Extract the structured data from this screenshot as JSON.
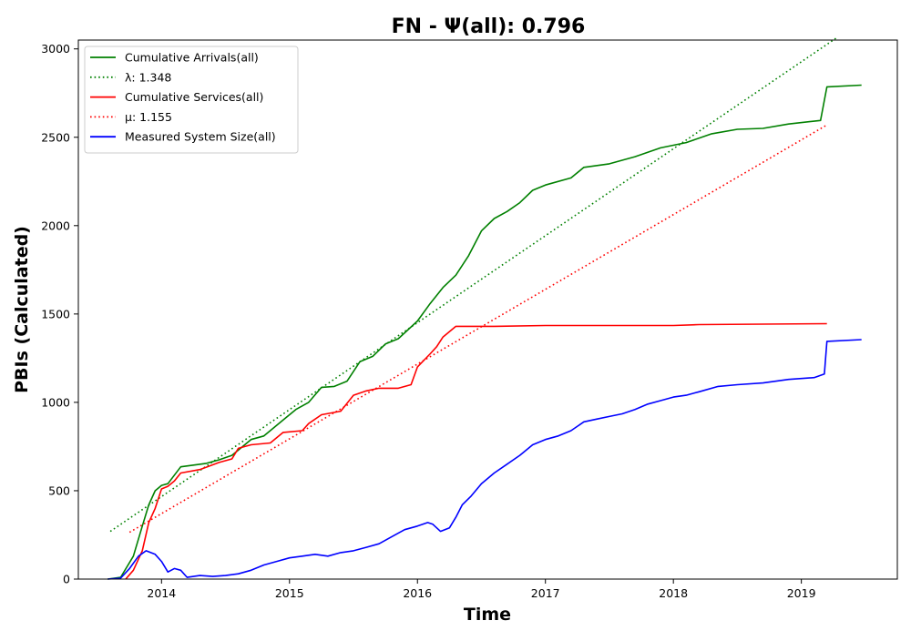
{
  "chart_data": {
    "type": "line",
    "title": "FN -  Ψ(all): 0.796",
    "xlabel": "Time",
    "ylabel": "PBIs (Calculated)",
    "xlim": [
      2013.35,
      2019.75
    ],
    "ylim": [
      0,
      3050
    ],
    "xticks": [
      2014,
      2015,
      2016,
      2017,
      2018,
      2019
    ],
    "yticks": [
      0,
      500,
      1000,
      1500,
      2000,
      2500,
      3000
    ],
    "legend_position": "upper-left",
    "grid": false,
    "series": [
      {
        "name": "Cumulative Arrivals(all)",
        "color": "#008000",
        "style": "solid",
        "x": [
          2013.58,
          2013.68,
          2013.78,
          2013.85,
          2013.9,
          2013.95,
          2014.0,
          2014.05,
          2014.15,
          2014.35,
          2014.45,
          2014.55,
          2014.7,
          2014.8,
          2014.95,
          2015.05,
          2015.15,
          2015.25,
          2015.35,
          2015.45,
          2015.55,
          2015.65,
          2015.75,
          2015.85,
          2016.0,
          2016.1,
          2016.2,
          2016.3,
          2016.4,
          2016.5,
          2016.6,
          2016.7,
          2016.8,
          2016.9,
          2017.0,
          2017.2,
          2017.3,
          2017.5,
          2017.7,
          2017.9,
          2018.1,
          2018.3,
          2018.5,
          2018.7,
          2018.9,
          2019.15,
          2019.2,
          2019.47
        ],
        "y": [
          0,
          10,
          130,
          300,
          420,
          500,
          530,
          540,
          635,
          655,
          675,
          700,
          790,
          810,
          900,
          960,
          1000,
          1085,
          1090,
          1120,
          1230,
          1260,
          1330,
          1360,
          1460,
          1560,
          1650,
          1720,
          1830,
          1970,
          2040,
          2080,
          2130,
          2200,
          2230,
          2270,
          2330,
          2350,
          2390,
          2440,
          2470,
          2520,
          2545,
          2550,
          2575,
          2595,
          2785,
          2795
        ]
      },
      {
        "name": "λ: 1.348",
        "color": "#008000",
        "style": "dotted",
        "x": [
          2013.6,
          2019.28
        ],
        "y": [
          270,
          3065
        ]
      },
      {
        "name": "Cumulative Services(all)",
        "color": "#ff0000",
        "style": "solid",
        "x": [
          2013.72,
          2013.78,
          2013.85,
          2013.9,
          2013.95,
          2014.0,
          2014.05,
          2014.1,
          2014.15,
          2014.3,
          2014.45,
          2014.55,
          2014.6,
          2014.7,
          2014.85,
          2014.95,
          2015.1,
          2015.15,
          2015.25,
          2015.4,
          2015.5,
          2015.6,
          2015.7,
          2015.85,
          2015.95,
          2016.0,
          2016.1,
          2016.15,
          2016.2,
          2016.3,
          2016.6,
          2017.0,
          2018.0,
          2018.2,
          2019.2
        ],
        "y": [
          0,
          50,
          160,
          320,
          400,
          510,
          525,
          555,
          600,
          620,
          660,
          680,
          740,
          760,
          770,
          830,
          840,
          880,
          930,
          950,
          1040,
          1065,
          1080,
          1080,
          1100,
          1200,
          1275,
          1315,
          1370,
          1430,
          1430,
          1435,
          1435,
          1440,
          1445
        ]
      },
      {
        "name": "μ: 1.155",
        "color": "#ff0000",
        "style": "dotted",
        "x": [
          2013.75,
          2019.2
        ],
        "y": [
          265,
          2570
        ]
      },
      {
        "name": "Measured System Size(all)",
        "color": "#0000ff",
        "style": "solid",
        "x": [
          2013.58,
          2013.68,
          2013.75,
          2013.82,
          2013.88,
          2013.95,
          2014.0,
          2014.05,
          2014.1,
          2014.15,
          2014.2,
          2014.3,
          2014.4,
          2014.5,
          2014.6,
          2014.7,
          2014.8,
          2014.9,
          2015.0,
          2015.1,
          2015.2,
          2015.3,
          2015.4,
          2015.5,
          2015.6,
          2015.7,
          2015.8,
          2015.9,
          2016.0,
          2016.08,
          2016.12,
          2016.18,
          2016.25,
          2016.3,
          2016.35,
          2016.42,
          2016.5,
          2016.6,
          2016.7,
          2016.8,
          2016.9,
          2017.0,
          2017.1,
          2017.2,
          2017.3,
          2017.4,
          2017.5,
          2017.6,
          2017.7,
          2017.8,
          2017.9,
          2018.0,
          2018.1,
          2018.2,
          2018.35,
          2018.5,
          2018.7,
          2018.9,
          2019.1,
          2019.18,
          2019.2,
          2019.47
        ],
        "y": [
          0,
          5,
          60,
          130,
          160,
          140,
          100,
          40,
          60,
          50,
          10,
          20,
          15,
          20,
          30,
          50,
          80,
          100,
          120,
          130,
          140,
          130,
          150,
          160,
          180,
          200,
          240,
          280,
          300,
          320,
          310,
          270,
          290,
          350,
          420,
          470,
          540,
          600,
          650,
          700,
          760,
          790,
          810,
          840,
          890,
          905,
          920,
          935,
          960,
          990,
          1010,
          1030,
          1040,
          1060,
          1090,
          1100,
          1110,
          1130,
          1140,
          1160,
          1345,
          1355
        ]
      }
    ]
  }
}
